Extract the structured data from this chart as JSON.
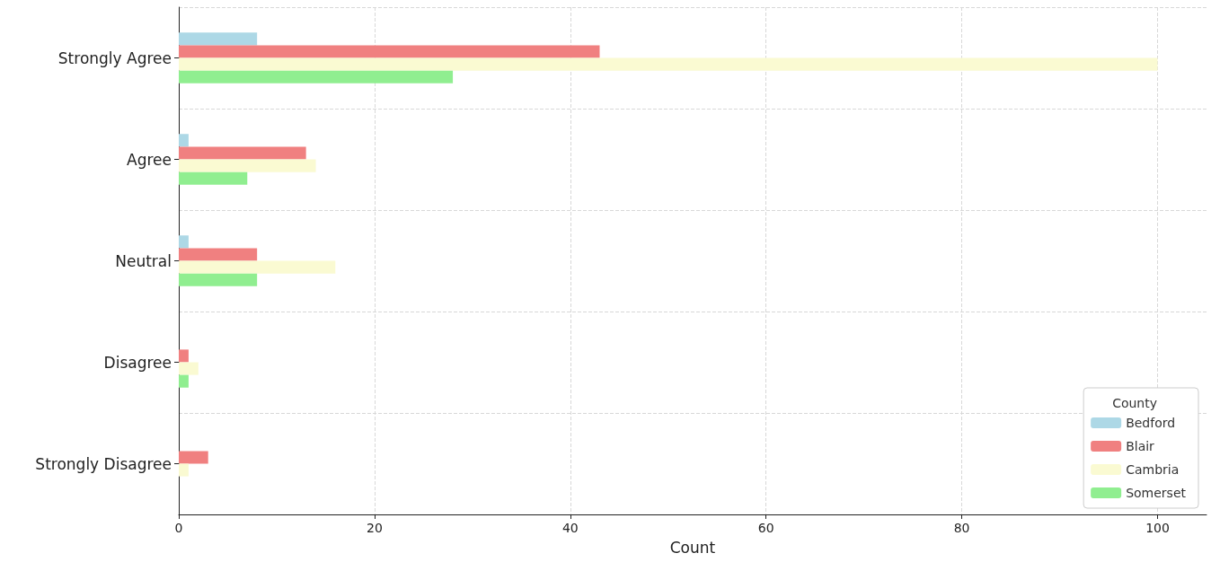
{
  "chart_data": {
    "type": "bar",
    "orientation": "horizontal",
    "xlabel": "Count",
    "legend_title": "County",
    "categories": [
      "Strongly Agree",
      "Agree",
      "Neutral",
      "Disagree",
      "Strongly Disagree"
    ],
    "series": [
      {
        "name": "Bedford",
        "color": "#add8e6",
        "values": [
          8,
          1,
          1,
          0,
          0
        ]
      },
      {
        "name": "Blair",
        "color": "#f08080",
        "values": [
          43,
          13,
          8,
          1,
          3
        ]
      },
      {
        "name": "Cambria",
        "color": "#fafad2",
        "values": [
          100,
          14,
          16,
          2,
          1
        ]
      },
      {
        "name": "Somerset",
        "color": "#90ee90",
        "values": [
          28,
          7,
          8,
          1,
          0
        ]
      }
    ],
    "xlim": [
      0,
      105
    ],
    "xticks": [
      0,
      20,
      40,
      60,
      80,
      100
    ],
    "grid": true,
    "legend": "bottom right"
  }
}
